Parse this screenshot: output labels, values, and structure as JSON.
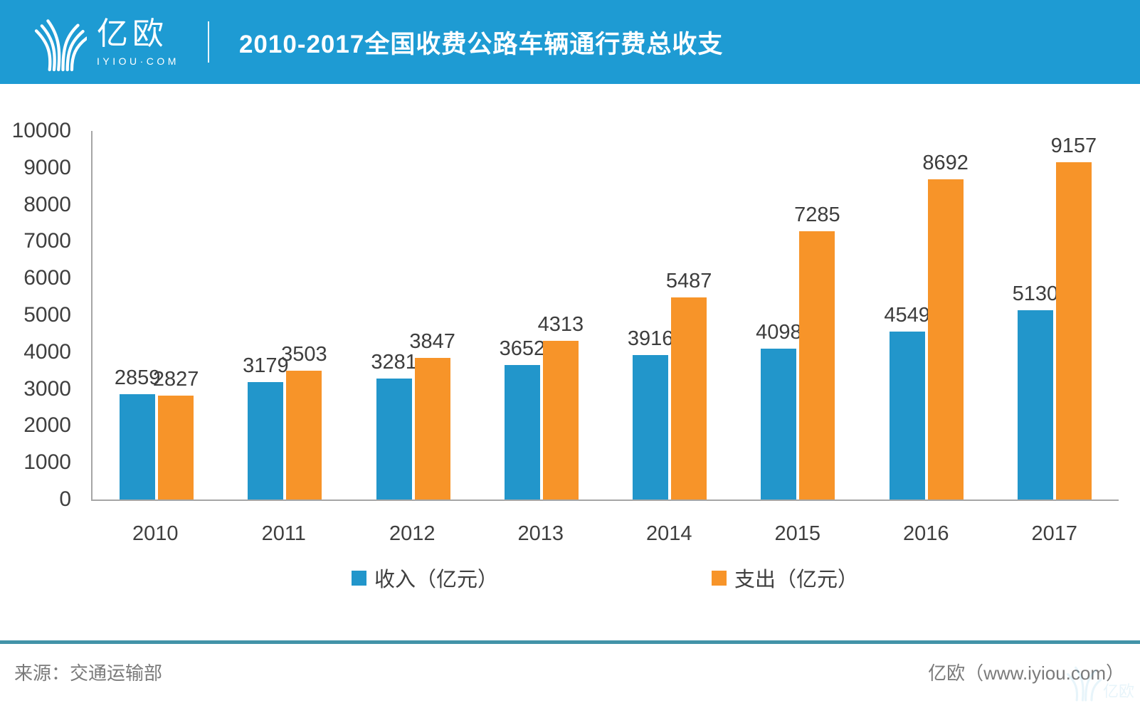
{
  "header": {
    "brand_name": "亿欧",
    "brand_domain": "IYIOU·COM",
    "title": "2010-2017全国收费公路车辆通行费总收支"
  },
  "colors": {
    "header_bg": "#1e9bd3",
    "income_blue": "#2296cb",
    "expense_orange": "#f79429",
    "axis_gray": "#a6a6a6",
    "footer_divider_teal": "#4293a8"
  },
  "chart_data": {
    "type": "bar",
    "title": "2010-2017全国收费公路车辆通行费总收支",
    "categories": [
      "2010",
      "2011",
      "2012",
      "2013",
      "2014",
      "2015",
      "2016",
      "2017"
    ],
    "series": [
      {
        "name": "收入（亿元）",
        "color": "#2296cb",
        "values": [
          2859,
          3179,
          3281,
          3652,
          3916,
          4098,
          4549,
          5130
        ]
      },
      {
        "name": "支出（亿元）",
        "color": "#f79429",
        "values": [
          2827,
          3503,
          3847,
          4313,
          5487,
          7285,
          8692,
          9157
        ]
      }
    ],
    "xlabel": "",
    "ylabel": "",
    "ylim": [
      0,
      10000
    ],
    "ytick_step": 1000,
    "grid": false,
    "legend_position": "bottom",
    "value_labels": true
  },
  "footer": {
    "source_label": "来源：交通运输部",
    "brand_label": "亿欧（www.iyiou.com）",
    "watermark_text": "亿欧"
  }
}
